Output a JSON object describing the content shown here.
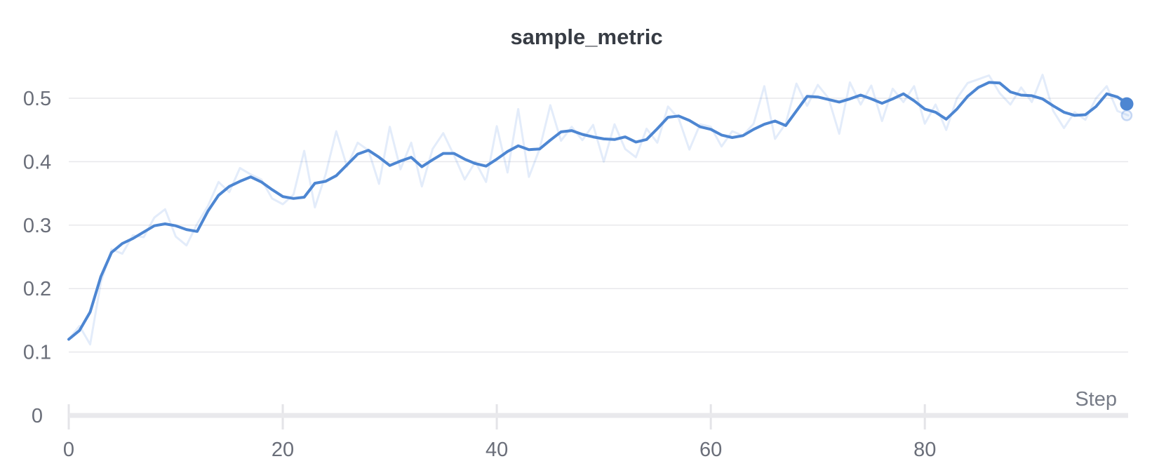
{
  "panel": {
    "title": "sample_metric"
  },
  "axes": {
    "x": {
      "label": "Step",
      "tick_labels": [
        "0",
        "20",
        "40",
        "60",
        "80"
      ],
      "tick_values": [
        0,
        20,
        40,
        60,
        80
      ],
      "range": [
        0,
        99
      ]
    },
    "y": {
      "tick_labels": [
        "0",
        "0.1",
        "0.2",
        "0.3",
        "0.4",
        "0.5"
      ],
      "tick_values": [
        0,
        0.1,
        0.2,
        0.3,
        0.4,
        0.5
      ],
      "range": [
        0,
        0.56
      ]
    }
  },
  "colors": {
    "line": "#4d86d2",
    "line_faint": "rgba(83,135,221,0.16)",
    "endpoint_fill": "#4d86d2",
    "endpoint_faint_fill": "rgba(83,135,221,0.10)",
    "endpoint_faint_ring": "rgba(83,135,221,0.30)",
    "gridline": "#e8e8eb",
    "axis_bar": "#e9e9ec",
    "tick_mark": "#e4e4e8",
    "tick_text": "#6a6e79",
    "title_text": "#373c44",
    "step_text": "#777c87"
  },
  "chart_data": {
    "type": "line",
    "title": "sample_metric",
    "xlabel": "Step",
    "ylabel": "",
    "x_start": 0,
    "x_step": 1,
    "x_range": [
      0,
      99
    ],
    "ylim": [
      0,
      0.56
    ],
    "x_ticks": [
      0,
      20,
      40,
      60,
      80
    ],
    "y_ticks": [
      0,
      0.1,
      0.2,
      0.3,
      0.4,
      0.5
    ],
    "grid": "horizontal-only",
    "legend": "none",
    "series": [
      {
        "name": "sample_metric (original, unsmoothed)",
        "role": "faint",
        "last_value": 0.473,
        "values": [
          0.12,
          0.141,
          0.112,
          0.21,
          0.262,
          0.255,
          0.284,
          0.281,
          0.312,
          0.325,
          0.282,
          0.268,
          0.302,
          0.33,
          0.368,
          0.352,
          0.39,
          0.38,
          0.372,
          0.342,
          0.333,
          0.348,
          0.417,
          0.328,
          0.38,
          0.448,
          0.392,
          0.43,
          0.418,
          0.365,
          0.455,
          0.388,
          0.43,
          0.361,
          0.42,
          0.445,
          0.41,
          0.372,
          0.4,
          0.368,
          0.456,
          0.383,
          0.483,
          0.376,
          0.42,
          0.489,
          0.433,
          0.455,
          0.434,
          0.458,
          0.4,
          0.459,
          0.42,
          0.407,
          0.452,
          0.43,
          0.487,
          0.468,
          0.419,
          0.459,
          0.455,
          0.424,
          0.448,
          0.441,
          0.46,
          0.519,
          0.436,
          0.46,
          0.523,
          0.488,
          0.521,
          0.5,
          0.444,
          0.525,
          0.49,
          0.52,
          0.464,
          0.515,
          0.494,
          0.519,
          0.46,
          0.49,
          0.45,
          0.5,
          0.524,
          0.53,
          0.536,
          0.508,
          0.49,
          0.517,
          0.494,
          0.537,
          0.48,
          0.453,
          0.478,
          0.466,
          0.5,
          0.519,
          0.48,
          0.473
        ]
      },
      {
        "name": "sample_metric (smoothed)",
        "role": "main",
        "last_value": 0.491,
        "values": [
          0.12,
          0.134,
          0.163,
          0.219,
          0.257,
          0.271,
          0.279,
          0.289,
          0.299,
          0.302,
          0.299,
          0.293,
          0.29,
          0.322,
          0.347,
          0.361,
          0.369,
          0.376,
          0.368,
          0.356,
          0.345,
          0.342,
          0.344,
          0.366,
          0.369,
          0.378,
          0.395,
          0.412,
          0.418,
          0.407,
          0.394,
          0.401,
          0.407,
          0.392,
          0.403,
          0.413,
          0.413,
          0.404,
          0.397,
          0.393,
          0.404,
          0.416,
          0.425,
          0.419,
          0.42,
          0.434,
          0.447,
          0.449,
          0.443,
          0.439,
          0.436,
          0.435,
          0.439,
          0.431,
          0.435,
          0.452,
          0.47,
          0.472,
          0.465,
          0.455,
          0.451,
          0.442,
          0.438,
          0.441,
          0.451,
          0.459,
          0.464,
          0.457,
          0.48,
          0.503,
          0.502,
          0.498,
          0.494,
          0.499,
          0.505,
          0.499,
          0.492,
          0.499,
          0.507,
          0.496,
          0.483,
          0.478,
          0.467,
          0.483,
          0.503,
          0.517,
          0.525,
          0.524,
          0.51,
          0.505,
          0.504,
          0.499,
          0.488,
          0.478,
          0.473,
          0.474,
          0.487,
          0.507,
          0.502,
          0.491
        ]
      }
    ]
  }
}
